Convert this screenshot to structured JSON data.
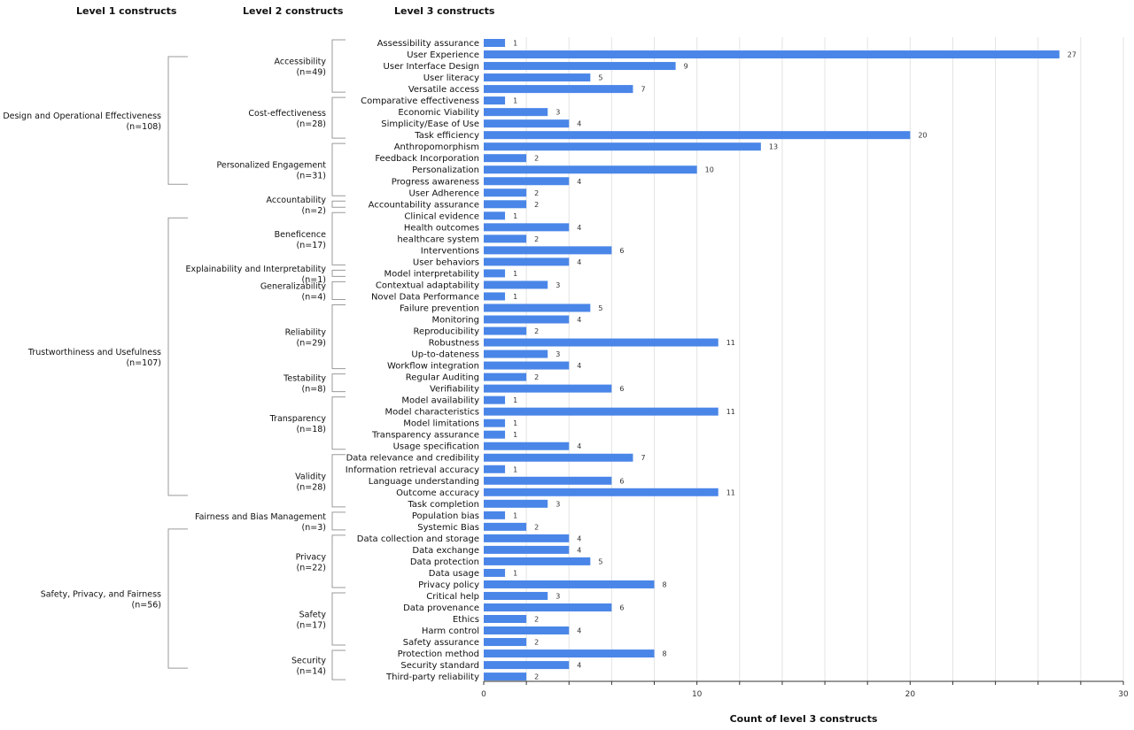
{
  "headers": {
    "level1": "Level 1 constructs",
    "level2": "Level 2 constructs",
    "level3": "Level 3 constructs"
  },
  "chart_data": {
    "type": "bar",
    "orientation": "horizontal",
    "xlabel": "Count of level 3 constructs",
    "xlim": [
      0,
      30
    ],
    "xticks": [
      0,
      10,
      20,
      30
    ],
    "grid": true,
    "bar_color": "#4a86e8",
    "categories": [
      "Assessibility assurance",
      "User Experience",
      "User Interface Design",
      "User literacy",
      "Versatile access",
      "Comparative effectiveness",
      "Economic Viability",
      "Simplicity/Ease of Use",
      "Task efficiency",
      "Anthropomorphism",
      "Feedback Incorporation",
      "Personalization",
      "Progress awareness",
      "User Adherence",
      "Accountability assurance",
      "Clinical evidence",
      "Health outcomes",
      "healthcare system",
      "Interventions",
      "User behaviors",
      "Model interpretability",
      "Contextual adaptability",
      "Novel Data Performance",
      "Failure prevention",
      "Monitoring",
      "Reproducibility",
      "Robustness",
      "Up-to-dateness",
      "Workflow integration",
      "Regular Auditing",
      "Verifiability",
      "Model availability",
      "Model characteristics",
      "Model limitations",
      "Transparency assurance",
      "Usage specification",
      "Data relevance and credibility",
      "Information retrieval accuracy",
      "Language understanding",
      "Outcome accuracy",
      "Task completion",
      "Population bias",
      "Systemic Bias",
      "Data collection and storage",
      "Data exchange",
      "Data protection",
      "Data usage",
      "Privacy policy",
      "Critical help",
      "Data provenance",
      "Ethics",
      "Harm control",
      "Safety assurance",
      "Protection method",
      "Security standard",
      "Third-party reliability"
    ],
    "values": [
      1,
      27,
      9,
      5,
      7,
      1,
      3,
      4,
      20,
      13,
      2,
      10,
      4,
      2,
      2,
      1,
      4,
      2,
      6,
      4,
      1,
      3,
      1,
      5,
      4,
      2,
      11,
      3,
      4,
      2,
      6,
      1,
      11,
      1,
      1,
      4,
      7,
      1,
      6,
      11,
      3,
      1,
      2,
      4,
      4,
      5,
      1,
      8,
      3,
      6,
      2,
      4,
      2,
      8,
      4,
      2
    ],
    "level2_groups": [
      {
        "name": "Accessibility",
        "count": "(n=49)",
        "range": [
          0,
          4
        ]
      },
      {
        "name": "Cost-effectiveness",
        "count": "(n=28)",
        "range": [
          5,
          8
        ]
      },
      {
        "name": "Personalized Engagement",
        "count": "(n=31)",
        "range": [
          9,
          13
        ]
      },
      {
        "name": "Accountability",
        "count": "(n=2)",
        "range": [
          14,
          14
        ]
      },
      {
        "name": "Beneficence",
        "count": "(n=17)",
        "range": [
          15,
          19
        ]
      },
      {
        "name": "Explainability and Interpretability",
        "count": "(n=1)",
        "range": [
          20,
          20
        ]
      },
      {
        "name": "Generalizability",
        "count": "(n=4)",
        "range": [
          21,
          22
        ]
      },
      {
        "name": "Reliability",
        "count": "(n=29)",
        "range": [
          23,
          28
        ]
      },
      {
        "name": "Testability",
        "count": "(n=8)",
        "range": [
          29,
          30
        ]
      },
      {
        "name": "Transparency",
        "count": "(n=18)",
        "range": [
          31,
          35
        ]
      },
      {
        "name": "Validity",
        "count": "(n=28)",
        "range": [
          36,
          40
        ]
      },
      {
        "name": "Fairness and Bias Management",
        "count": "(n=3)",
        "range": [
          41,
          42
        ]
      },
      {
        "name": "Privacy",
        "count": "(n=22)",
        "range": [
          43,
          47
        ]
      },
      {
        "name": "Safety",
        "count": "(n=17)",
        "range": [
          48,
          52
        ]
      },
      {
        "name": "Security",
        "count": "(n=14)",
        "range": [
          53,
          55
        ]
      }
    ],
    "level1_groups": [
      {
        "name": "Design and Operational Effectiveness",
        "count": "(n=108)",
        "range": [
          0,
          13
        ]
      },
      {
        "name": "Trustworthiness and Usefulness",
        "count": "(n=107)",
        "range": [
          14,
          40
        ]
      },
      {
        "name": "Safety, Privacy, and Fairness",
        "count": "(n=56)",
        "range": [
          41,
          55
        ]
      }
    ]
  }
}
